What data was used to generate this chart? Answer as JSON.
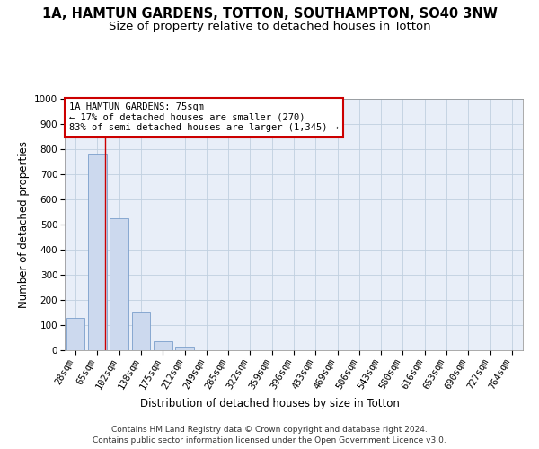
{
  "title": "1A, HAMTUN GARDENS, TOTTON, SOUTHAMPTON, SO40 3NW",
  "subtitle": "Size of property relative to detached houses in Totton",
  "xlabel": "Distribution of detached houses by size in Totton",
  "ylabel": "Number of detached properties",
  "footer_line1": "Contains HM Land Registry data © Crown copyright and database right 2024.",
  "footer_line2": "Contains public sector information licensed under the Open Government Licence v3.0.",
  "categories": [
    "28sqm",
    "65sqm",
    "102sqm",
    "138sqm",
    "175sqm",
    "212sqm",
    "249sqm",
    "285sqm",
    "322sqm",
    "359sqm",
    "396sqm",
    "433sqm",
    "469sqm",
    "506sqm",
    "543sqm",
    "580sqm",
    "616sqm",
    "653sqm",
    "690sqm",
    "727sqm",
    "764sqm"
  ],
  "values": [
    130,
    780,
    525,
    155,
    35,
    15,
    0,
    0,
    0,
    0,
    0,
    0,
    0,
    0,
    0,
    0,
    0,
    0,
    0,
    0,
    0
  ],
  "bar_color": "#ccd9ee",
  "bar_edge_color": "#7a9ecb",
  "ylim": [
    0,
    1000
  ],
  "yticks": [
    0,
    100,
    200,
    300,
    400,
    500,
    600,
    700,
    800,
    900,
    1000
  ],
  "property_line_x": 1.35,
  "property_line_color": "#cc0000",
  "annotation_text": "1A HAMTUN GARDENS: 75sqm\n← 17% of detached houses are smaller (270)\n83% of semi-detached houses are larger (1,345) →",
  "annotation_box_color": "#cc0000",
  "grid_color": "#c0d0e0",
  "background_color": "#e8eef8",
  "title_fontsize": 10.5,
  "subtitle_fontsize": 9.5,
  "tick_fontsize": 7.5,
  "ylabel_fontsize": 8.5,
  "xlabel_fontsize": 8.5,
  "annotation_fontsize": 7.5,
  "footer_fontsize": 6.5
}
